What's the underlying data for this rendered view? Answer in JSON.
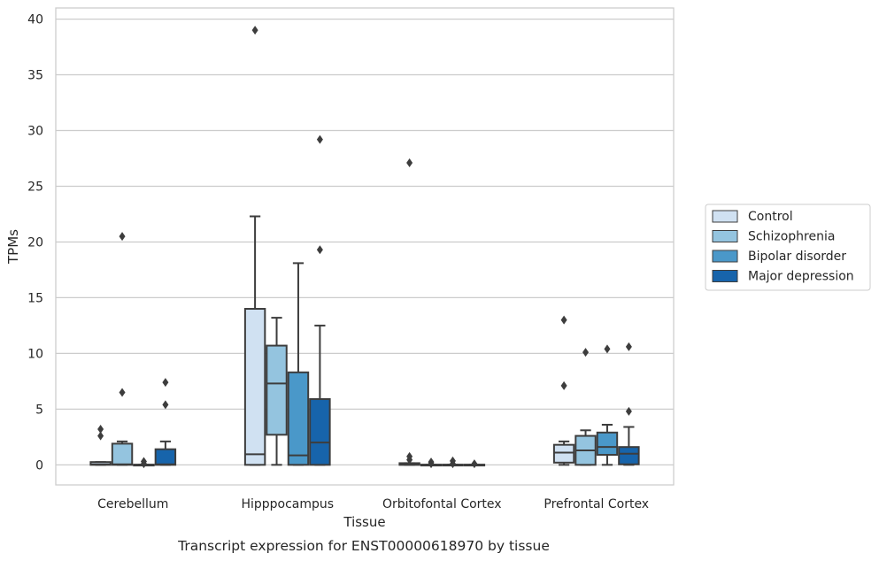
{
  "chart_data": {
    "type": "box",
    "title": "Transcript expression for ENST00000618970 by tissue",
    "xlabel": "Tissue",
    "ylabel": "TPMs",
    "ylim": [
      -1.8,
      41
    ],
    "yticks": [
      0,
      5,
      10,
      15,
      20,
      25,
      30,
      35,
      40
    ],
    "grid": "horizontal",
    "legend_position": "right",
    "categories": [
      "Cerebellum",
      "Hipppocampus",
      "Orbitofontal Cortex",
      "Prefrontal Cortex"
    ],
    "series": [
      {
        "name": "Control",
        "color": "#d0e1f2",
        "boxes": [
          {
            "whislo": 0,
            "q1": 0,
            "med": 0.05,
            "q3": 0.25,
            "whishi": 0.25,
            "fliers": [
              2.6,
              3.2
            ]
          },
          {
            "whislo": 0,
            "q1": 0,
            "med": 0.95,
            "q3": 14.0,
            "whishi": 22.3,
            "fliers": [
              39.0
            ]
          },
          {
            "whislo": 0,
            "q1": 0,
            "med": 0.02,
            "q3": 0.15,
            "whishi": 0.15,
            "fliers": [
              0.45,
              0.75,
              27.1
            ]
          },
          {
            "whislo": 0,
            "q1": 0.2,
            "med": 1.1,
            "q3": 1.8,
            "whishi": 2.1,
            "fliers": [
              7.1,
              13.0
            ]
          }
        ]
      },
      {
        "name": "Schizophrenia",
        "color": "#94c4df",
        "boxes": [
          {
            "whislo": 0,
            "q1": 0,
            "med": 0.05,
            "q3": 1.9,
            "whishi": 2.1,
            "fliers": [
              6.5,
              20.5
            ]
          },
          {
            "whislo": 0,
            "q1": 2.7,
            "med": 7.3,
            "q3": 10.7,
            "whishi": 13.2,
            "fliers": []
          },
          {
            "whislo": 0,
            "q1": 0,
            "med": 0.0,
            "q3": 0.02,
            "whishi": 0.02,
            "fliers": [
              0.1,
              0.25
            ]
          },
          {
            "whislo": 0,
            "q1": 0,
            "med": 1.3,
            "q3": 2.6,
            "whishi": 3.1,
            "fliers": [
              10.1
            ]
          }
        ]
      },
      {
        "name": "Bipolar disorder",
        "color": "#4a98c9",
        "boxes": [
          {
            "whislo": 0,
            "q1": 0,
            "med": 0.0,
            "q3": 0.02,
            "whishi": 0.02,
            "fliers": [
              0.1,
              0.3
            ]
          },
          {
            "whislo": 0,
            "q1": 0,
            "med": 0.85,
            "q3": 8.3,
            "whishi": 18.1,
            "fliers": []
          },
          {
            "whislo": 0,
            "q1": 0,
            "med": 0.0,
            "q3": 0.02,
            "whishi": 0.02,
            "fliers": [
              0.1,
              0.35
            ]
          },
          {
            "whislo": 0,
            "q1": 0.9,
            "med": 1.6,
            "q3": 2.9,
            "whishi": 3.6,
            "fliers": [
              10.4
            ]
          }
        ]
      },
      {
        "name": "Major depression",
        "color": "#1764ab",
        "boxes": [
          {
            "whislo": 0,
            "q1": 0,
            "med": 0.05,
            "q3": 1.4,
            "whishi": 2.1,
            "fliers": [
              5.4,
              7.4
            ]
          },
          {
            "whislo": 0,
            "q1": 0,
            "med": 2.0,
            "q3": 5.9,
            "whishi": 12.5,
            "fliers": [
              19.3,
              29.2
            ]
          },
          {
            "whislo": 0,
            "q1": 0,
            "med": 0.0,
            "q3": 0.02,
            "whishi": 0.02,
            "fliers": [
              0.1
            ]
          },
          {
            "whislo": 0,
            "q1": 0.05,
            "med": 1.0,
            "q3": 1.6,
            "whishi": 3.4,
            "fliers": [
              4.8,
              10.6
            ]
          }
        ]
      }
    ]
  }
}
